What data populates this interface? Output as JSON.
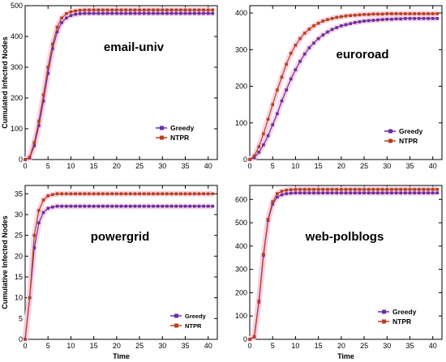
{
  "colors": {
    "greedy": "#6a2ea0",
    "ntpr": "#b8401e",
    "halo": "#f6cfe2"
  },
  "chart_data": [
    {
      "type": "line",
      "title": "email-univ",
      "xlabel": "",
      "ylabel": "Cumulated Infected Nodes",
      "xlim": [
        0,
        42
      ],
      "ylim": [
        0,
        500
      ],
      "xticks": [
        "0",
        "5",
        "10",
        "15",
        "20",
        "25",
        "30",
        "35",
        "40"
      ],
      "yticks": [
        "0",
        "100",
        "200",
        "300",
        "400",
        "500"
      ],
      "grid": false,
      "legend_position": "lower-right",
      "series": [
        {
          "name": "Greedy",
          "color": "#6a2ea0",
          "x": [
            0,
            1,
            2,
            3,
            4,
            5,
            6,
            7,
            8,
            9,
            10,
            11,
            12,
            13,
            14,
            15,
            16,
            17,
            18,
            19,
            20,
            21,
            22,
            23,
            24,
            25,
            26,
            27,
            28,
            29,
            30,
            31,
            32,
            33,
            34,
            35,
            36,
            37,
            38,
            39,
            40,
            41
          ],
          "y": [
            0,
            5,
            45,
            110,
            190,
            280,
            360,
            415,
            445,
            460,
            468,
            472,
            474,
            475,
            475,
            475,
            475,
            475,
            475,
            475,
            475,
            475,
            475,
            475,
            475,
            475,
            475,
            475,
            475,
            475,
            475,
            475,
            475,
            475,
            475,
            475,
            475,
            475,
            475,
            475,
            475,
            475
          ]
        },
        {
          "name": "NTPR",
          "color": "#b8401e",
          "x": [
            0,
            1,
            2,
            3,
            4,
            5,
            6,
            7,
            8,
            9,
            10,
            11,
            12,
            13,
            14,
            15,
            16,
            17,
            18,
            19,
            20,
            21,
            22,
            23,
            24,
            25,
            26,
            27,
            28,
            29,
            30,
            31,
            32,
            33,
            34,
            35,
            36,
            37,
            38,
            39,
            40,
            41
          ],
          "y": [
            0,
            8,
            55,
            125,
            210,
            300,
            375,
            430,
            460,
            474,
            480,
            483,
            485,
            486,
            486,
            486,
            486,
            486,
            486,
            486,
            486,
            486,
            486,
            486,
            486,
            486,
            486,
            486,
            486,
            486,
            486,
            486,
            486,
            486,
            486,
            486,
            486,
            486,
            486,
            486,
            486,
            486
          ]
        }
      ]
    },
    {
      "type": "line",
      "title": "euroroad",
      "xlabel": "",
      "ylabel": "",
      "xlim": [
        0,
        42
      ],
      "ylim": [
        0,
        420
      ],
      "xticks": [
        "0",
        "5",
        "10",
        "15",
        "20",
        "25",
        "30",
        "35",
        "40"
      ],
      "yticks": [
        "0",
        "100",
        "200",
        "300",
        "400"
      ],
      "grid": false,
      "legend_position": "lower-right",
      "series": [
        {
          "name": "Greedy",
          "color": "#6a2ea0",
          "x": [
            0,
            1,
            2,
            3,
            4,
            5,
            6,
            7,
            8,
            9,
            10,
            11,
            12,
            13,
            14,
            15,
            16,
            17,
            18,
            19,
            20,
            21,
            22,
            23,
            24,
            25,
            26,
            27,
            28,
            29,
            30,
            31,
            32,
            33,
            34,
            35,
            36,
            37,
            38,
            39,
            40,
            41
          ],
          "y": [
            0,
            5,
            20,
            40,
            65,
            95,
            125,
            160,
            190,
            220,
            245,
            268,
            288,
            305,
            318,
            330,
            340,
            348,
            355,
            360,
            365,
            368,
            371,
            374,
            376,
            378,
            379,
            380,
            381,
            382,
            383,
            383,
            384,
            384,
            385,
            385,
            385,
            385,
            385,
            385,
            385,
            385
          ]
        },
        {
          "name": "NTPR",
          "color": "#b8401e",
          "x": [
            0,
            1,
            2,
            3,
            4,
            5,
            6,
            7,
            8,
            9,
            10,
            11,
            12,
            13,
            14,
            15,
            16,
            17,
            18,
            19,
            20,
            21,
            22,
            23,
            24,
            25,
            26,
            27,
            28,
            29,
            30,
            31,
            32,
            33,
            34,
            35,
            36,
            37,
            38,
            39,
            40,
            41
          ],
          "y": [
            0,
            10,
            35,
            70,
            110,
            150,
            190,
            225,
            260,
            290,
            312,
            330,
            345,
            356,
            365,
            372,
            378,
            382,
            385,
            388,
            390,
            392,
            393,
            394,
            395,
            396,
            396,
            397,
            397,
            397,
            398,
            398,
            398,
            398,
            398,
            398,
            398,
            398,
            398,
            398,
            398,
            398
          ]
        }
      ]
    },
    {
      "type": "line",
      "title": "powergrid",
      "xlabel": "Time",
      "ylabel": "Cumulative  Infected Nodes",
      "xlim": [
        0,
        42
      ],
      "ylim": [
        0,
        37
      ],
      "xticks": [
        "0",
        "5",
        "10",
        "15",
        "20",
        "25",
        "30",
        "35",
        "40"
      ],
      "yticks": [
        "0",
        "5",
        "10",
        "15",
        "20",
        "25",
        "30",
        "35"
      ],
      "grid": false,
      "legend_position": "lower-right",
      "series": [
        {
          "name": "Greedy",
          "color": "#6a2ea0",
          "x": [
            0,
            1,
            2,
            3,
            4,
            5,
            6,
            7,
            8,
            9,
            10,
            11,
            12,
            13,
            14,
            15,
            16,
            17,
            18,
            19,
            20,
            21,
            22,
            23,
            24,
            25,
            26,
            27,
            28,
            29,
            30,
            31,
            32,
            33,
            34,
            35,
            36,
            37,
            38,
            39,
            40,
            41
          ],
          "y": [
            0,
            10,
            22,
            28,
            30.5,
            31.5,
            31.8,
            32,
            32,
            32,
            32,
            32,
            32,
            32,
            32,
            32,
            32,
            32,
            32,
            32,
            32,
            32,
            32,
            32,
            32,
            32,
            32,
            32,
            32,
            32,
            32,
            32,
            32,
            32,
            32,
            32,
            32,
            32,
            32,
            32,
            32,
            32
          ]
        },
        {
          "name": "NTPR",
          "color": "#b8401e",
          "x": [
            0,
            1,
            2,
            3,
            4,
            5,
            6,
            7,
            8,
            9,
            10,
            11,
            12,
            13,
            14,
            15,
            16,
            17,
            18,
            19,
            20,
            21,
            22,
            23,
            24,
            25,
            26,
            27,
            28,
            29,
            30,
            31,
            32,
            33,
            34,
            35,
            36,
            37,
            38,
            39,
            40,
            41
          ],
          "y": [
            0,
            10,
            25,
            31,
            33.5,
            34.5,
            34.8,
            35,
            35,
            35,
            35,
            35,
            35,
            35,
            35,
            35,
            35,
            35,
            35,
            35,
            35,
            35,
            35,
            35,
            35,
            35,
            35,
            35,
            35,
            35,
            35,
            35,
            35,
            35,
            35,
            35,
            35,
            35,
            35,
            35,
            35,
            35
          ]
        }
      ]
    },
    {
      "type": "line",
      "title": "web-polblogs",
      "xlabel": "Time",
      "ylabel": "",
      "xlim": [
        0,
        42
      ],
      "ylim": [
        0,
        660
      ],
      "xticks": [
        "0",
        "5",
        "10",
        "15",
        "20",
        "25",
        "30",
        "35",
        "40"
      ],
      "yticks": [
        "0",
        "100",
        "200",
        "300",
        "400",
        "500",
        "600"
      ],
      "grid": false,
      "legend_position": "lower-right",
      "series": [
        {
          "name": "Greedy",
          "color": "#6a2ea0",
          "x": [
            0,
            1,
            2,
            3,
            4,
            5,
            6,
            7,
            8,
            9,
            10,
            11,
            12,
            13,
            14,
            15,
            16,
            17,
            18,
            19,
            20,
            21,
            22,
            23,
            24,
            25,
            26,
            27,
            28,
            29,
            30,
            31,
            32,
            33,
            34,
            35,
            36,
            37,
            38,
            39,
            40,
            41
          ],
          "y": [
            0,
            10,
            160,
            360,
            510,
            580,
            610,
            620,
            625,
            627,
            628,
            628,
            628,
            628,
            628,
            628,
            628,
            628,
            628,
            628,
            628,
            628,
            628,
            628,
            628,
            628,
            628,
            628,
            628,
            628,
            628,
            628,
            628,
            628,
            628,
            628,
            628,
            628,
            628,
            628,
            628,
            628
          ]
        },
        {
          "name": "NTPR",
          "color": "#b8401e",
          "x": [
            0,
            1,
            2,
            3,
            4,
            5,
            6,
            7,
            8,
            9,
            10,
            11,
            12,
            13,
            14,
            15,
            16,
            17,
            18,
            19,
            20,
            21,
            22,
            23,
            24,
            25,
            26,
            27,
            28,
            29,
            30,
            31,
            32,
            33,
            34,
            35,
            36,
            37,
            38,
            39,
            40,
            41
          ],
          "y": [
            0,
            12,
            165,
            365,
            515,
            590,
            625,
            635,
            640,
            642,
            643,
            643,
            643,
            643,
            643,
            643,
            643,
            643,
            643,
            643,
            643,
            643,
            643,
            643,
            643,
            643,
            643,
            643,
            643,
            643,
            643,
            643,
            643,
            643,
            643,
            643,
            643,
            643,
            643,
            643,
            643,
            643
          ]
        }
      ]
    }
  ]
}
